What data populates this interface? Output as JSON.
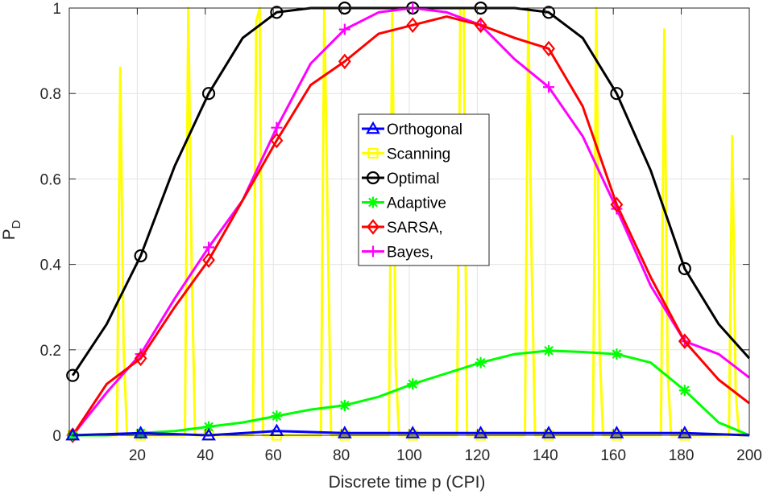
{
  "chart_data": {
    "type": "line",
    "xlabel": "Discrete time p (CPI)",
    "ylabel_main": "P",
    "ylabel_sub": "D",
    "xlim": [
      0,
      200
    ],
    "ylim": [
      0,
      1
    ],
    "xticks": [
      20,
      40,
      60,
      80,
      100,
      120,
      140,
      160,
      180,
      200
    ],
    "yticks": [
      0,
      0.2,
      0.4,
      0.6,
      0.8,
      1
    ],
    "ytick_labels": [
      "0",
      "0.2",
      "0.4",
      "0.6",
      "0.8",
      "1"
    ],
    "grid": true,
    "legend_position": "center",
    "series": [
      {
        "name": "Orthogonal",
        "color": "#0000ff",
        "marker": "triangle",
        "x": [
          1,
          21,
          41,
          61,
          81,
          101,
          121,
          141,
          161,
          181,
          200
        ],
        "values": [
          0,
          0.005,
          0,
          0.01,
          0.005,
          0.005,
          0.005,
          0.005,
          0.005,
          0.005,
          0
        ]
      },
      {
        "name": "Scanning",
        "color": "#ffff00",
        "marker": "square",
        "x": [
          1,
          14,
          15,
          16,
          17,
          21,
          34,
          35,
          36,
          37,
          41,
          54,
          55,
          56,
          57,
          61,
          74,
          75,
          76,
          77,
          81,
          94,
          95,
          96,
          97,
          101,
          114,
          115,
          116,
          117,
          121,
          134,
          135,
          136,
          137,
          141,
          154,
          155,
          156,
          157,
          161,
          174,
          175,
          176,
          177,
          181,
          194,
          195,
          196,
          197,
          200
        ],
        "values": [
          0,
          0,
          0.86,
          0.2,
          0,
          0,
          0,
          1,
          0.4,
          0,
          0,
          0,
          0.97,
          1,
          0,
          0,
          0,
          1,
          0.5,
          0,
          0,
          0,
          1,
          0.16,
          0,
          0,
          0,
          1,
          1,
          0,
          0,
          0,
          1,
          0.4,
          0,
          0,
          0,
          1,
          0.2,
          0,
          0,
          0,
          0.95,
          0.15,
          0,
          0,
          0,
          0.7,
          0.1,
          0,
          0
        ]
      },
      {
        "name": "Optimal",
        "color": "#000000",
        "marker": "circle",
        "x": [
          1,
          11,
          21,
          31,
          41,
          51,
          61,
          71,
          81,
          91,
          101,
          111,
          121,
          131,
          141,
          151,
          161,
          171,
          181,
          191,
          200
        ],
        "values": [
          0.14,
          0.26,
          0.42,
          0.63,
          0.8,
          0.93,
          0.99,
          1,
          1,
          1,
          1,
          1,
          1,
          1,
          0.99,
          0.93,
          0.8,
          0.62,
          0.39,
          0.26,
          0.18
        ]
      },
      {
        "name": "Adaptive",
        "color": "#00ff00",
        "marker": "asterisk",
        "x": [
          1,
          11,
          21,
          31,
          41,
          51,
          61,
          71,
          81,
          91,
          101,
          111,
          121,
          131,
          141,
          151,
          161,
          171,
          181,
          191,
          200
        ],
        "values": [
          0,
          0,
          0.005,
          0.01,
          0.02,
          0.03,
          0.045,
          0.06,
          0.07,
          0.09,
          0.12,
          0.145,
          0.17,
          0.19,
          0.198,
          0.195,
          0.19,
          0.17,
          0.105,
          0.03,
          0
        ]
      },
      {
        "name": "SARSA,",
        "color": "#ff0000",
        "marker": "diamond",
        "x": [
          1,
          11,
          21,
          31,
          41,
          51,
          61,
          71,
          81,
          91,
          101,
          111,
          121,
          131,
          141,
          151,
          161,
          171,
          181,
          191,
          200
        ],
        "values": [
          0,
          0.12,
          0.18,
          0.3,
          0.41,
          0.55,
          0.69,
          0.82,
          0.875,
          0.94,
          0.96,
          0.98,
          0.96,
          0.93,
          0.905,
          0.77,
          0.54,
          0.37,
          0.22,
          0.13,
          0.075
        ]
      },
      {
        "name": "Bayes,",
        "color": "#ff00ff",
        "marker": "plus",
        "x": [
          1,
          11,
          21,
          31,
          41,
          51,
          61,
          71,
          81,
          91,
          101,
          111,
          121,
          131,
          141,
          151,
          161,
          171,
          181,
          191,
          200
        ],
        "values": [
          0,
          0.1,
          0.19,
          0.32,
          0.44,
          0.55,
          0.72,
          0.87,
          0.95,
          0.99,
          1,
          0.99,
          0.96,
          0.88,
          0.815,
          0.7,
          0.53,
          0.35,
          0.22,
          0.19,
          0.135
        ]
      }
    ]
  }
}
